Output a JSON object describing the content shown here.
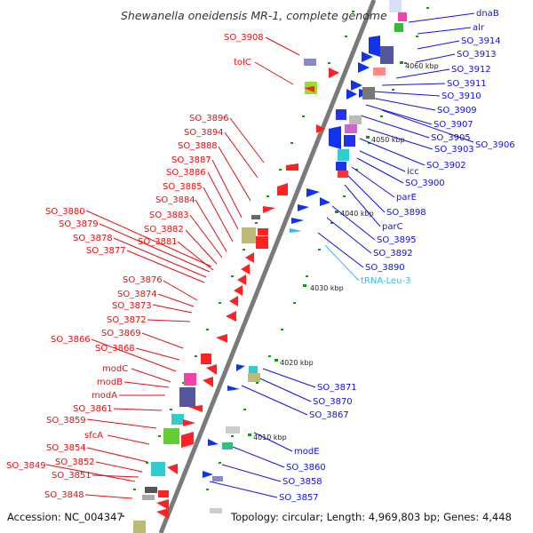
{
  "title": "Shewanella oneidensis MR-1, complete genome",
  "accession": "Accession: NC_004347",
  "topology": "Topology: circular; Length: 4,969,803 bp; Genes: 4,448",
  "colors": {
    "left": "#dd1111",
    "right": "#1111dd",
    "trna": "#33bbee",
    "backbone": "#7a7a7a",
    "tick": "#119911"
  },
  "kbp_marks": [
    "4060 kbp",
    "4050 kbp",
    "4040 kbp",
    "4030 kbp",
    "4020 kbp",
    "4010 kbp"
  ],
  "left_labels": [
    "SO_3908",
    "tolC",
    "SO_3896",
    "SO_3894",
    "SO_3888",
    "SO_3887",
    "SO_3886",
    "SO_3885",
    "SO_3884",
    "SO_3883",
    "SO_3880",
    "SO_3879",
    "SO_3882",
    "SO_3878",
    "SO_3881",
    "SO_3877",
    "SO_3876",
    "SO_3874",
    "SO_3873",
    "SO_3872",
    "SO_3869",
    "SO_3866",
    "SO_3868",
    "modC",
    "modB",
    "modA",
    "SO_3861",
    "SO_3859",
    "sfcA",
    "SO_3854",
    "SO_3852",
    "SO_3849",
    "SO_3851",
    "SO_3848"
  ],
  "right_labels": [
    "dnaB",
    "alr",
    "SO_3914",
    "SO_3913",
    "SO_3912",
    "SO_3911",
    "SO_3910",
    "SO_3909",
    "SO_3907",
    "SO_3905",
    "SO_3906",
    "SO_3903",
    "SO_3902",
    "icc",
    "SO_3900",
    "parE",
    "SO_3898",
    "parC",
    "SO_3895",
    "SO_3892",
    "SO_3890",
    "tRNA-Leu-3",
    "SO_3871",
    "SO_3870",
    "SO_3867",
    "modE",
    "SO_3860",
    "SO_3858",
    "SO_3857"
  ]
}
